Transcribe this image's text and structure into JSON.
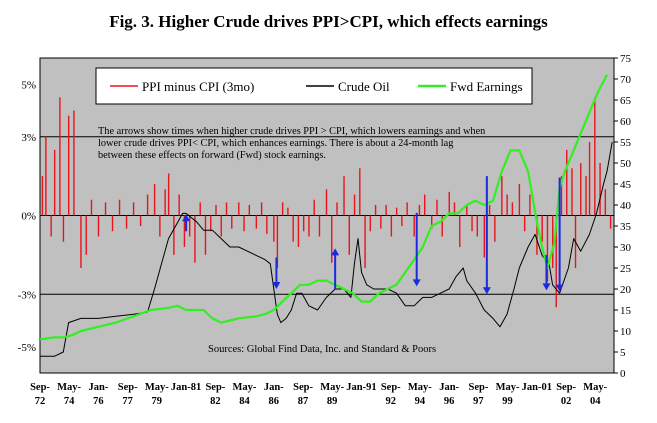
{
  "chart_data": {
    "type": "line",
    "title": "Fig. 3. Higher Crude drives PPI>CPI, which effects earnings",
    "annotation": "The arrows show times when higher crude drives PPI > CPI, which lowers earnings and when lower crude drives PPI< CPI, which enhances earnings.  There is about a  24-month lag between these effects on forward (Fwd) stock earnings.",
    "annotation_lines": [
      "The arrows show times when higher crude drives PPI > CPI, which lowers earnings and when",
      "lower crude drives PPI< CPI, which enhances earnings.  There is about a  24-month lag",
      "between these effects on forward (Fwd) stock earnings."
    ],
    "source": "Sources: Global Find Data, Inc. and Standard & Poors",
    "x_ticks": [
      {
        "t": 1972.67,
        "top": "Sep-",
        "bottom": "72"
      },
      {
        "t": 1974.33,
        "top": "May-",
        "bottom": "74"
      },
      {
        "t": 1976.0,
        "top": "Jan-",
        "bottom": "76"
      },
      {
        "t": 1977.67,
        "top": "Sep-",
        "bottom": "77"
      },
      {
        "t": 1979.33,
        "top": "May-",
        "bottom": "79"
      },
      {
        "t": 1981.0,
        "top": "Jan-81",
        "bottom": ""
      },
      {
        "t": 1982.67,
        "top": "Sep-",
        "bottom": "82"
      },
      {
        "t": 1984.33,
        "top": "May-",
        "bottom": "84"
      },
      {
        "t": 1986.0,
        "top": "Jan-",
        "bottom": "86"
      },
      {
        "t": 1987.67,
        "top": "Sep-",
        "bottom": "87"
      },
      {
        "t": 1989.33,
        "top": "May-",
        "bottom": "89"
      },
      {
        "t": 1991.0,
        "top": "Jan-91",
        "bottom": ""
      },
      {
        "t": 1992.67,
        "top": "Sep-",
        "bottom": "92"
      },
      {
        "t": 1994.33,
        "top": "May-",
        "bottom": "94"
      },
      {
        "t": 1996.0,
        "top": "Jan-",
        "bottom": "96"
      },
      {
        "t": 1997.67,
        "top": "Sep-",
        "bottom": "97"
      },
      {
        "t": 1999.33,
        "top": "May-",
        "bottom": "99"
      },
      {
        "t": 2001.0,
        "top": "Jan-01",
        "bottom": ""
      },
      {
        "t": 2002.67,
        "top": "Sep-",
        "bottom": "02"
      },
      {
        "t": 2004.33,
        "top": "May-",
        "bottom": "04"
      }
    ],
    "xlim": [
      1972.67,
      2005.4
    ],
    "y_left": {
      "ticks": [
        5,
        3,
        0,
        -3,
        -5
      ],
      "labels": [
        "5%",
        "3%",
        "0%",
        "-3%",
        "-5%"
      ],
      "lim": [
        -6,
        6
      ]
    },
    "y_right": {
      "ticks": [
        75,
        70,
        65,
        60,
        55,
        50,
        45,
        40,
        35,
        30,
        25,
        20,
        15,
        10,
        5,
        0
      ],
      "lim": [
        0,
        75
      ]
    },
    "legend": [
      "PPI minus CPI (3mo)",
      "Crude Oil",
      "Fwd Earnings"
    ],
    "legend_placement": "top",
    "colors": {
      "ppi": "#e8141c",
      "crude": "#000000",
      "fwd": "#33ee22",
      "arrow": "#1a2bdc",
      "plot_bg": "#c0c0c0"
    },
    "series": [
      {
        "name": "PPI minus CPI (3mo)",
        "axis": "left",
        "kind": "bars",
        "x": [
          1972.8,
          1973.0,
          1973.3,
          1973.5,
          1973.8,
          1974.0,
          1974.3,
          1974.6,
          1975.0,
          1975.3,
          1975.6,
          1976.0,
          1976.4,
          1976.8,
          1977.2,
          1977.6,
          1978.0,
          1978.4,
          1978.8,
          1979.2,
          1979.5,
          1979.8,
          1980.0,
          1980.3,
          1980.6,
          1980.9,
          1981.2,
          1981.5,
          1981.8,
          1982.1,
          1982.4,
          1982.7,
          1983.0,
          1983.3,
          1983.6,
          1984.0,
          1984.3,
          1984.6,
          1985.0,
          1985.3,
          1985.6,
          1986.0,
          1986.2,
          1986.5,
          1986.8,
          1987.1,
          1987.4,
          1987.7,
          1988.0,
          1988.3,
          1988.6,
          1989.0,
          1989.3,
          1989.6,
          1990.0,
          1990.3,
          1990.6,
          1990.9,
          1991.2,
          1991.5,
          1991.8,
          1992.1,
          1992.4,
          1992.7,
          1993.0,
          1993.3,
          1993.6,
          1994.0,
          1994.3,
          1994.6,
          1995.0,
          1995.3,
          1995.6,
          1996.0,
          1996.3,
          1996.6,
          1997.0,
          1997.3,
          1997.6,
          1998.0,
          1998.3,
          1998.6,
          1999.0,
          1999.3,
          1999.6,
          2000.0,
          2000.3,
          2000.6,
          2001.0,
          2001.3,
          2001.6,
          2001.9,
          2002.1,
          2002.4,
          2002.7,
          2003.0,
          2003.2,
          2003.5,
          2003.8,
          2004.0,
          2004.3,
          2004.6,
          2004.9,
          2005.2
        ],
        "values": [
          1.5,
          3.0,
          -0.8,
          2.5,
          4.5,
          -1.0,
          3.8,
          4.0,
          -2.0,
          -1.5,
          0.6,
          -0.8,
          0.5,
          -0.6,
          0.6,
          -0.5,
          0.5,
          -0.4,
          0.8,
          1.2,
          -0.8,
          1.0,
          1.6,
          -1.5,
          0.8,
          -1.2,
          -0.8,
          -1.8,
          0.5,
          -1.5,
          -0.6,
          0.4,
          -0.8,
          0.5,
          -0.5,
          0.5,
          -0.6,
          0.4,
          -0.5,
          0.5,
          -0.7,
          -1.0,
          -2.0,
          0.5,
          0.3,
          -1.0,
          -1.2,
          -0.6,
          -0.8,
          0.6,
          -0.8,
          1.0,
          -1.8,
          0.5,
          1.5,
          -1.5,
          0.8,
          1.8,
          -2.0,
          -0.6,
          0.4,
          -0.5,
          0.4,
          -0.8,
          0.3,
          -0.4,
          0.5,
          -0.8,
          0.4,
          0.8,
          -0.5,
          0.6,
          -0.8,
          0.9,
          0.5,
          -1.2,
          0.4,
          -0.6,
          -0.8,
          -1.6,
          0.4,
          -1.0,
          1.5,
          0.8,
          0.5,
          1.2,
          -0.6,
          0.8,
          -1.5,
          -1.0,
          -2.5,
          -2.0,
          -3.5,
          1.5,
          2.5,
          1.8,
          -2.0,
          2.0,
          1.5,
          2.8,
          4.5,
          2.0,
          1.0,
          -0.5
        ]
      },
      {
        "name": "Crude Oil",
        "axis": "right",
        "kind": "line",
        "x": [
          1972.67,
          1973.5,
          1974.0,
          1974.3,
          1975.0,
          1976.0,
          1977.0,
          1978.0,
          1978.8,
          1979.2,
          1979.6,
          1980.0,
          1980.4,
          1980.8,
          1981.0,
          1981.3,
          1981.6,
          1982.0,
          1982.5,
          1983.0,
          1983.5,
          1984.0,
          1984.5,
          1985.0,
          1985.5,
          1985.8,
          1986.0,
          1986.2,
          1986.4,
          1986.7,
          1987.0,
          1987.3,
          1987.6,
          1988.0,
          1988.5,
          1989.0,
          1989.5,
          1990.0,
          1990.4,
          1990.6,
          1990.8,
          1991.0,
          1991.3,
          1991.7,
          1992.0,
          1992.5,
          1993.0,
          1993.5,
          1994.0,
          1994.5,
          1995.0,
          1995.5,
          1996.0,
          1996.4,
          1996.8,
          1997.0,
          1997.5,
          1998.0,
          1998.5,
          1998.9,
          1999.3,
          1999.7,
          2000.0,
          2000.5,
          2000.9,
          2001.3,
          2001.7,
          2001.9,
          2002.3,
          2002.8,
          2003.1,
          2003.5,
          2004.0,
          2004.4,
          2004.8,
          2005.0,
          2005.3
        ],
        "values": [
          4,
          4,
          5,
          12,
          13,
          13,
          13.5,
          14,
          14.5,
          20,
          26,
          32,
          35,
          38,
          38,
          37,
          36,
          34,
          34,
          32,
          30,
          30,
          29,
          28,
          27,
          26,
          20,
          14,
          12,
          13,
          15,
          19,
          19,
          16,
          15,
          18,
          20,
          20,
          18,
          26,
          32,
          24,
          21,
          20,
          20,
          20,
          19,
          16,
          16,
          18,
          18,
          19,
          20,
          23,
          25,
          22,
          19,
          15,
          13,
          11,
          14,
          20,
          25,
          30,
          33,
          28,
          26,
          21,
          19,
          25,
          32,
          29,
          33,
          38,
          45,
          48,
          55
        ]
      },
      {
        "name": "Fwd Earnings",
        "axis": "right",
        "kind": "line",
        "x": [
          1972.67,
          1973.5,
          1974.0,
          1974.5,
          1975.0,
          1976.0,
          1977.0,
          1978.0,
          1979.0,
          1980.0,
          1980.5,
          1981.0,
          1981.5,
          1982.0,
          1982.5,
          1983.0,
          1983.5,
          1984.0,
          1985.0,
          1985.5,
          1986.0,
          1986.5,
          1987.0,
          1987.5,
          1988.0,
          1988.5,
          1989.0,
          1989.5,
          1990.0,
          1990.5,
          1991.0,
          1991.5,
          1992.0,
          1992.5,
          1993.0,
          1993.5,
          1994.0,
          1994.5,
          1995.0,
          1995.5,
          1996.0,
          1996.5,
          1997.0,
          1997.5,
          1998.0,
          1998.5,
          1999.0,
          1999.5,
          2000.0,
          2000.5,
          2001.0,
          2001.3,
          2001.6,
          2002.0,
          2002.3,
          2002.6,
          2003.0,
          2003.5,
          2004.0,
          2004.5,
          2005.0
        ],
        "values": [
          8,
          8.5,
          8.5,
          9,
          10,
          11,
          12,
          13.5,
          15,
          15.5,
          16,
          15,
          15,
          15,
          13,
          12,
          12.5,
          13,
          13.5,
          14,
          15,
          17,
          19,
          21,
          21,
          22,
          22,
          21,
          20,
          19,
          17,
          17,
          19,
          20,
          21,
          24,
          27,
          30,
          35,
          36,
          38,
          38,
          40,
          41,
          40,
          41,
          48,
          53,
          53,
          48,
          36,
          30,
          25,
          31,
          44,
          48,
          52,
          57,
          62,
          67,
          71
        ]
      }
    ],
    "arrows": [
      {
        "x": 1981.0,
        "from": -0.6,
        "to": 0.05
      },
      {
        "x": 1986.15,
        "from": -1.6,
        "to": -2.8
      },
      {
        "x": 1989.5,
        "from": -2.8,
        "to": -1.25
      },
      {
        "x": 1994.15,
        "from": 0.1,
        "to": -2.7
      },
      {
        "x": 1998.15,
        "from": 1.5,
        "to": -3.0
      },
      {
        "x": 2001.55,
        "from": -1.5,
        "to": -2.85
      },
      {
        "x": 2002.3,
        "from": 1.45,
        "to": -2.9
      }
    ]
  }
}
